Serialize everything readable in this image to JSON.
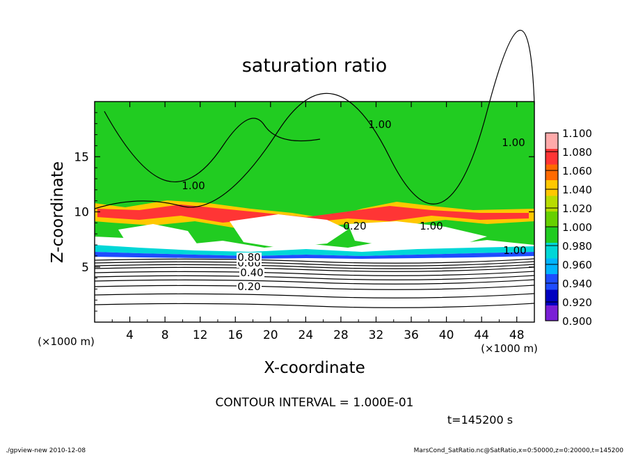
{
  "chart_data": {
    "type": "heatmap",
    "title": "saturation ratio",
    "xlabel": "X-coordinate",
    "ylabel": "Z-coordinate",
    "x_unit": "(×1000 m)",
    "z_unit": "(×1000 m)",
    "xlim": [
      0,
      50
    ],
    "ylim": [
      0,
      20
    ],
    "x_ticks": [
      "4",
      "8",
      "12",
      "16",
      "20",
      "24",
      "28",
      "32",
      "36",
      "40",
      "44",
      "48"
    ],
    "y_ticks": [
      "5",
      "10",
      "15"
    ],
    "colorbar": {
      "labels": [
        "0.900",
        "0.920",
        "0.940",
        "0.960",
        "0.980",
        "1.000",
        "1.020",
        "1.040",
        "1.060",
        "1.080",
        "1.100"
      ],
      "colors": [
        "#7a1fd6",
        "#0000c0",
        "#1e4cff",
        "#00b4ff",
        "#00d7d7",
        "#21cc21",
        "#66d000",
        "#b8dc00",
        "#ffc800",
        "#ff6a00",
        "#ff3535",
        "#ffaaaa"
      ]
    },
    "contour_labels": [
      "0.20",
      "0.40",
      "0.60",
      "0.80",
      "1.00",
      "1.00",
      "1.00",
      "1.00",
      "0.20",
      "1.00"
    ],
    "contour_interval_text": "CONTOUR INTERVAL = 1.000E-01",
    "time_text": "t=145200 s"
  },
  "footer": {
    "left": "./gpview-new   2010-12-08",
    "right": "MarsCond_SatRatio.nc@SatRatio,x=0:50000,z=0:20000,t=145200"
  }
}
